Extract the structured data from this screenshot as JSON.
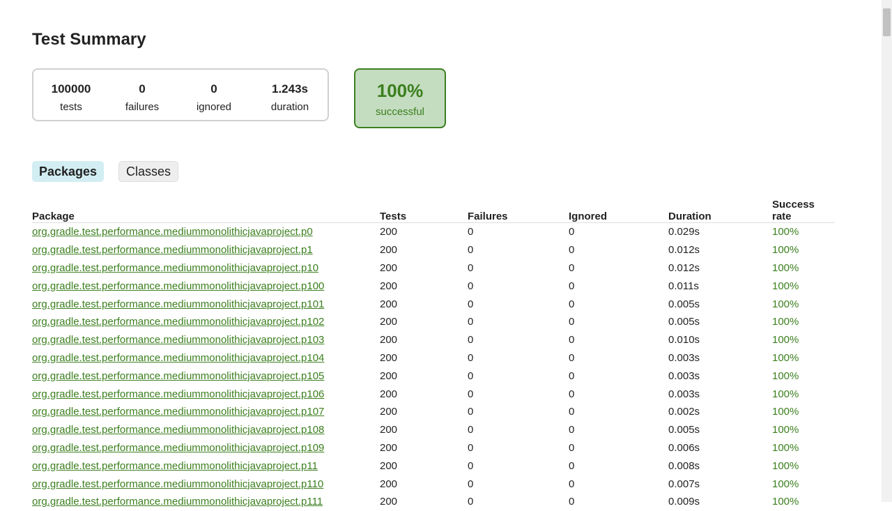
{
  "title": "Test Summary",
  "summary": {
    "tests": "100000",
    "tests_label": "tests",
    "failures": "0",
    "failures_label": "failures",
    "ignored": "0",
    "ignored_label": "ignored",
    "duration": "1.243s",
    "duration_label": "duration"
  },
  "rate": {
    "value": "100%",
    "label": "successful"
  },
  "tabs": [
    "Packages",
    "Classes"
  ],
  "columns": [
    "Package",
    "Tests",
    "Failures",
    "Ignored",
    "Duration",
    "Success rate"
  ],
  "rows": [
    [
      "org.gradle.test.performance.mediummonolithicjavaproject.p0",
      "200",
      "0",
      "0",
      "0.029s",
      "100%"
    ],
    [
      "org.gradle.test.performance.mediummonolithicjavaproject.p1",
      "200",
      "0",
      "0",
      "0.012s",
      "100%"
    ],
    [
      "org.gradle.test.performance.mediummonolithicjavaproject.p10",
      "200",
      "0",
      "0",
      "0.012s",
      "100%"
    ],
    [
      "org.gradle.test.performance.mediummonolithicjavaproject.p100",
      "200",
      "0",
      "0",
      "0.011s",
      "100%"
    ],
    [
      "org.gradle.test.performance.mediummonolithicjavaproject.p101",
      "200",
      "0",
      "0",
      "0.005s",
      "100%"
    ],
    [
      "org.gradle.test.performance.mediummonolithicjavaproject.p102",
      "200",
      "0",
      "0",
      "0.005s",
      "100%"
    ],
    [
      "org.gradle.test.performance.mediummonolithicjavaproject.p103",
      "200",
      "0",
      "0",
      "0.010s",
      "100%"
    ],
    [
      "org.gradle.test.performance.mediummonolithicjavaproject.p104",
      "200",
      "0",
      "0",
      "0.003s",
      "100%"
    ],
    [
      "org.gradle.test.performance.mediummonolithicjavaproject.p105",
      "200",
      "0",
      "0",
      "0.003s",
      "100%"
    ],
    [
      "org.gradle.test.performance.mediummonolithicjavaproject.p106",
      "200",
      "0",
      "0",
      "0.003s",
      "100%"
    ],
    [
      "org.gradle.test.performance.mediummonolithicjavaproject.p107",
      "200",
      "0",
      "0",
      "0.002s",
      "100%"
    ],
    [
      "org.gradle.test.performance.mediummonolithicjavaproject.p108",
      "200",
      "0",
      "0",
      "0.005s",
      "100%"
    ],
    [
      "org.gradle.test.performance.mediummonolithicjavaproject.p109",
      "200",
      "0",
      "0",
      "0.006s",
      "100%"
    ],
    [
      "org.gradle.test.performance.mediummonolithicjavaproject.p11",
      "200",
      "0",
      "0",
      "0.008s",
      "100%"
    ],
    [
      "org.gradle.test.performance.mediummonolithicjavaproject.p110",
      "200",
      "0",
      "0",
      "0.007s",
      "100%"
    ],
    [
      "org.gradle.test.performance.mediummonolithicjavaproject.p111",
      "200",
      "0",
      "0",
      "0.009s",
      "100%"
    ]
  ]
}
